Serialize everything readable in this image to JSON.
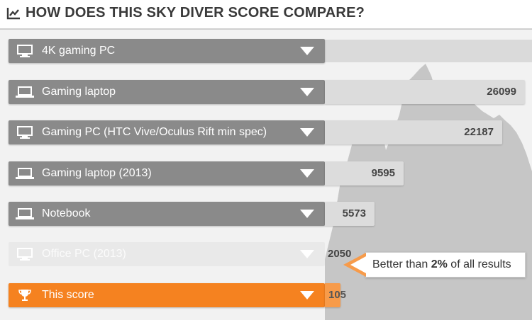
{
  "header": {
    "title": "HOW DOES THIS SKY DIVER SCORE COMPARE?",
    "icon": "line-chart-icon"
  },
  "rows": [
    {
      "label": "4K gaming PC",
      "value": "",
      "icon": "desktop-monitor-icon"
    },
    {
      "label": "Gaming laptop",
      "value": "26099",
      "icon": "laptop-icon"
    },
    {
      "label": "Gaming PC (HTC Vive/Oculus Rift min spec)",
      "value": "22187",
      "icon": "desktop-monitor-icon"
    },
    {
      "label": "Gaming laptop (2013)",
      "value": "9595",
      "icon": "laptop-icon"
    },
    {
      "label": "Notebook",
      "value": "5573",
      "icon": "laptop-icon"
    },
    {
      "label": "Office PC (2013)",
      "value": "2050",
      "icon": "desktop-monitor-icon"
    },
    {
      "label": "This score",
      "value": "105",
      "icon": "trophy-icon"
    }
  ],
  "tooltip": {
    "prefix": "Better than ",
    "percent": "2%",
    "suffix": " of all results"
  },
  "colors": {
    "row": "#8a8a8a",
    "value_bar": "#dcdcdc",
    "highlight": "#f58220",
    "background": "#f2f2f2"
  }
}
